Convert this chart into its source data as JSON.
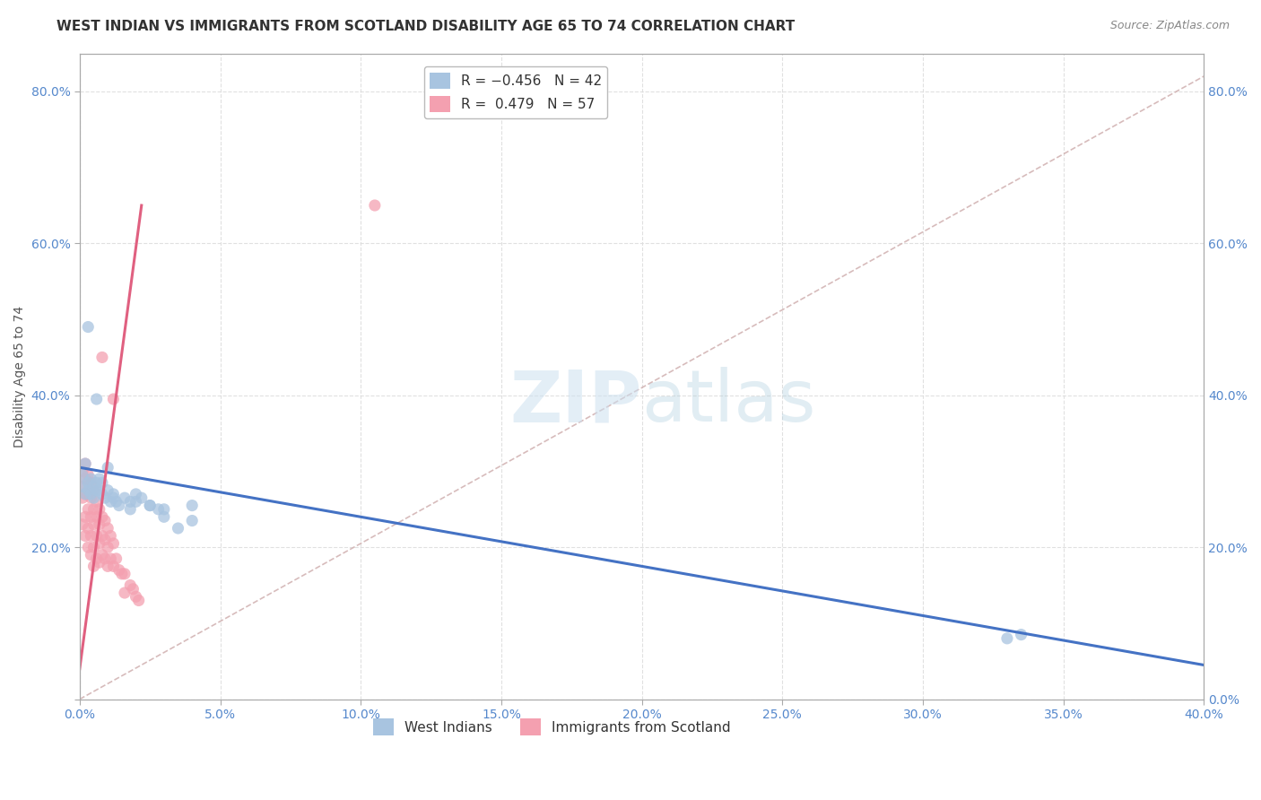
{
  "title": "WEST INDIAN VS IMMIGRANTS FROM SCOTLAND DISABILITY AGE 65 TO 74 CORRELATION CHART",
  "source": "Source: ZipAtlas.com",
  "xlabel": "",
  "ylabel": "Disability Age 65 to 74",
  "xlim": [
    0.0,
    0.4
  ],
  "ylim": [
    0.0,
    0.85
  ],
  "xticks": [
    0.0,
    0.05,
    0.1,
    0.15,
    0.2,
    0.25,
    0.3,
    0.35,
    0.4
  ],
  "yticks_left": [
    0.0,
    0.2,
    0.4,
    0.6,
    0.8
  ],
  "yticks_right": [
    0.0,
    0.2,
    0.4,
    0.6,
    0.8
  ],
  "background_color": "#ffffff",
  "grid_color": "#dddddd",
  "color_blue": "#a8c4e0",
  "color_pink": "#f4a0b0",
  "trend_blue": "#4472c4",
  "trend_pink": "#e06080",
  "trend_gray": "#d0b0b0",
  "title_fontsize": 11,
  "axis_label_fontsize": 10,
  "tick_fontsize": 10,
  "legend_fontsize": 11,
  "blue_trend_x": [
    0.0,
    0.4
  ],
  "blue_trend_y": [
    0.305,
    0.045
  ],
  "pink_trend_x": [
    0.0,
    0.022
  ],
  "pink_trend_y": [
    0.04,
    0.65
  ],
  "gray_line_x": [
    0.0,
    0.4
  ],
  "gray_line_y": [
    0.0,
    0.82
  ],
  "west_indians_x": [
    0.001,
    0.001,
    0.002,
    0.002,
    0.003,
    0.003,
    0.004,
    0.004,
    0.005,
    0.005,
    0.006,
    0.006,
    0.007,
    0.007,
    0.008,
    0.009,
    0.01,
    0.011,
    0.012,
    0.013,
    0.014,
    0.016,
    0.018,
    0.02,
    0.022,
    0.025,
    0.028,
    0.03,
    0.035,
    0.04,
    0.003,
    0.006,
    0.008,
    0.01,
    0.012,
    0.018,
    0.02,
    0.025,
    0.03,
    0.04,
    0.33,
    0.335
  ],
  "west_indians_y": [
    0.28,
    0.295,
    0.31,
    0.27,
    0.285,
    0.275,
    0.27,
    0.29,
    0.28,
    0.265,
    0.275,
    0.285,
    0.29,
    0.275,
    0.27,
    0.265,
    0.275,
    0.26,
    0.27,
    0.26,
    0.255,
    0.265,
    0.26,
    0.27,
    0.265,
    0.255,
    0.25,
    0.24,
    0.225,
    0.255,
    0.49,
    0.395,
    0.285,
    0.305,
    0.265,
    0.25,
    0.26,
    0.255,
    0.25,
    0.235,
    0.08,
    0.085
  ],
  "scotland_x": [
    0.001,
    0.001,
    0.001,
    0.001,
    0.002,
    0.002,
    0.002,
    0.002,
    0.002,
    0.003,
    0.003,
    0.003,
    0.003,
    0.003,
    0.004,
    0.004,
    0.004,
    0.004,
    0.004,
    0.005,
    0.005,
    0.005,
    0.005,
    0.005,
    0.006,
    0.006,
    0.006,
    0.006,
    0.007,
    0.007,
    0.007,
    0.007,
    0.008,
    0.008,
    0.008,
    0.009,
    0.009,
    0.009,
    0.01,
    0.01,
    0.01,
    0.011,
    0.011,
    0.012,
    0.012,
    0.013,
    0.014,
    0.015,
    0.016,
    0.016,
    0.018,
    0.019,
    0.02,
    0.021,
    0.105,
    0.012,
    0.008
  ],
  "scotland_y": [
    0.3,
    0.28,
    0.265,
    0.23,
    0.31,
    0.29,
    0.27,
    0.24,
    0.215,
    0.295,
    0.27,
    0.25,
    0.225,
    0.2,
    0.285,
    0.265,
    0.24,
    0.215,
    0.19,
    0.275,
    0.25,
    0.23,
    0.2,
    0.175,
    0.26,
    0.24,
    0.215,
    0.185,
    0.25,
    0.23,
    0.205,
    0.18,
    0.24,
    0.215,
    0.19,
    0.235,
    0.21,
    0.185,
    0.225,
    0.2,
    0.175,
    0.215,
    0.185,
    0.205,
    0.175,
    0.185,
    0.17,
    0.165,
    0.165,
    0.14,
    0.15,
    0.145,
    0.135,
    0.13,
    0.65,
    0.395,
    0.45
  ]
}
